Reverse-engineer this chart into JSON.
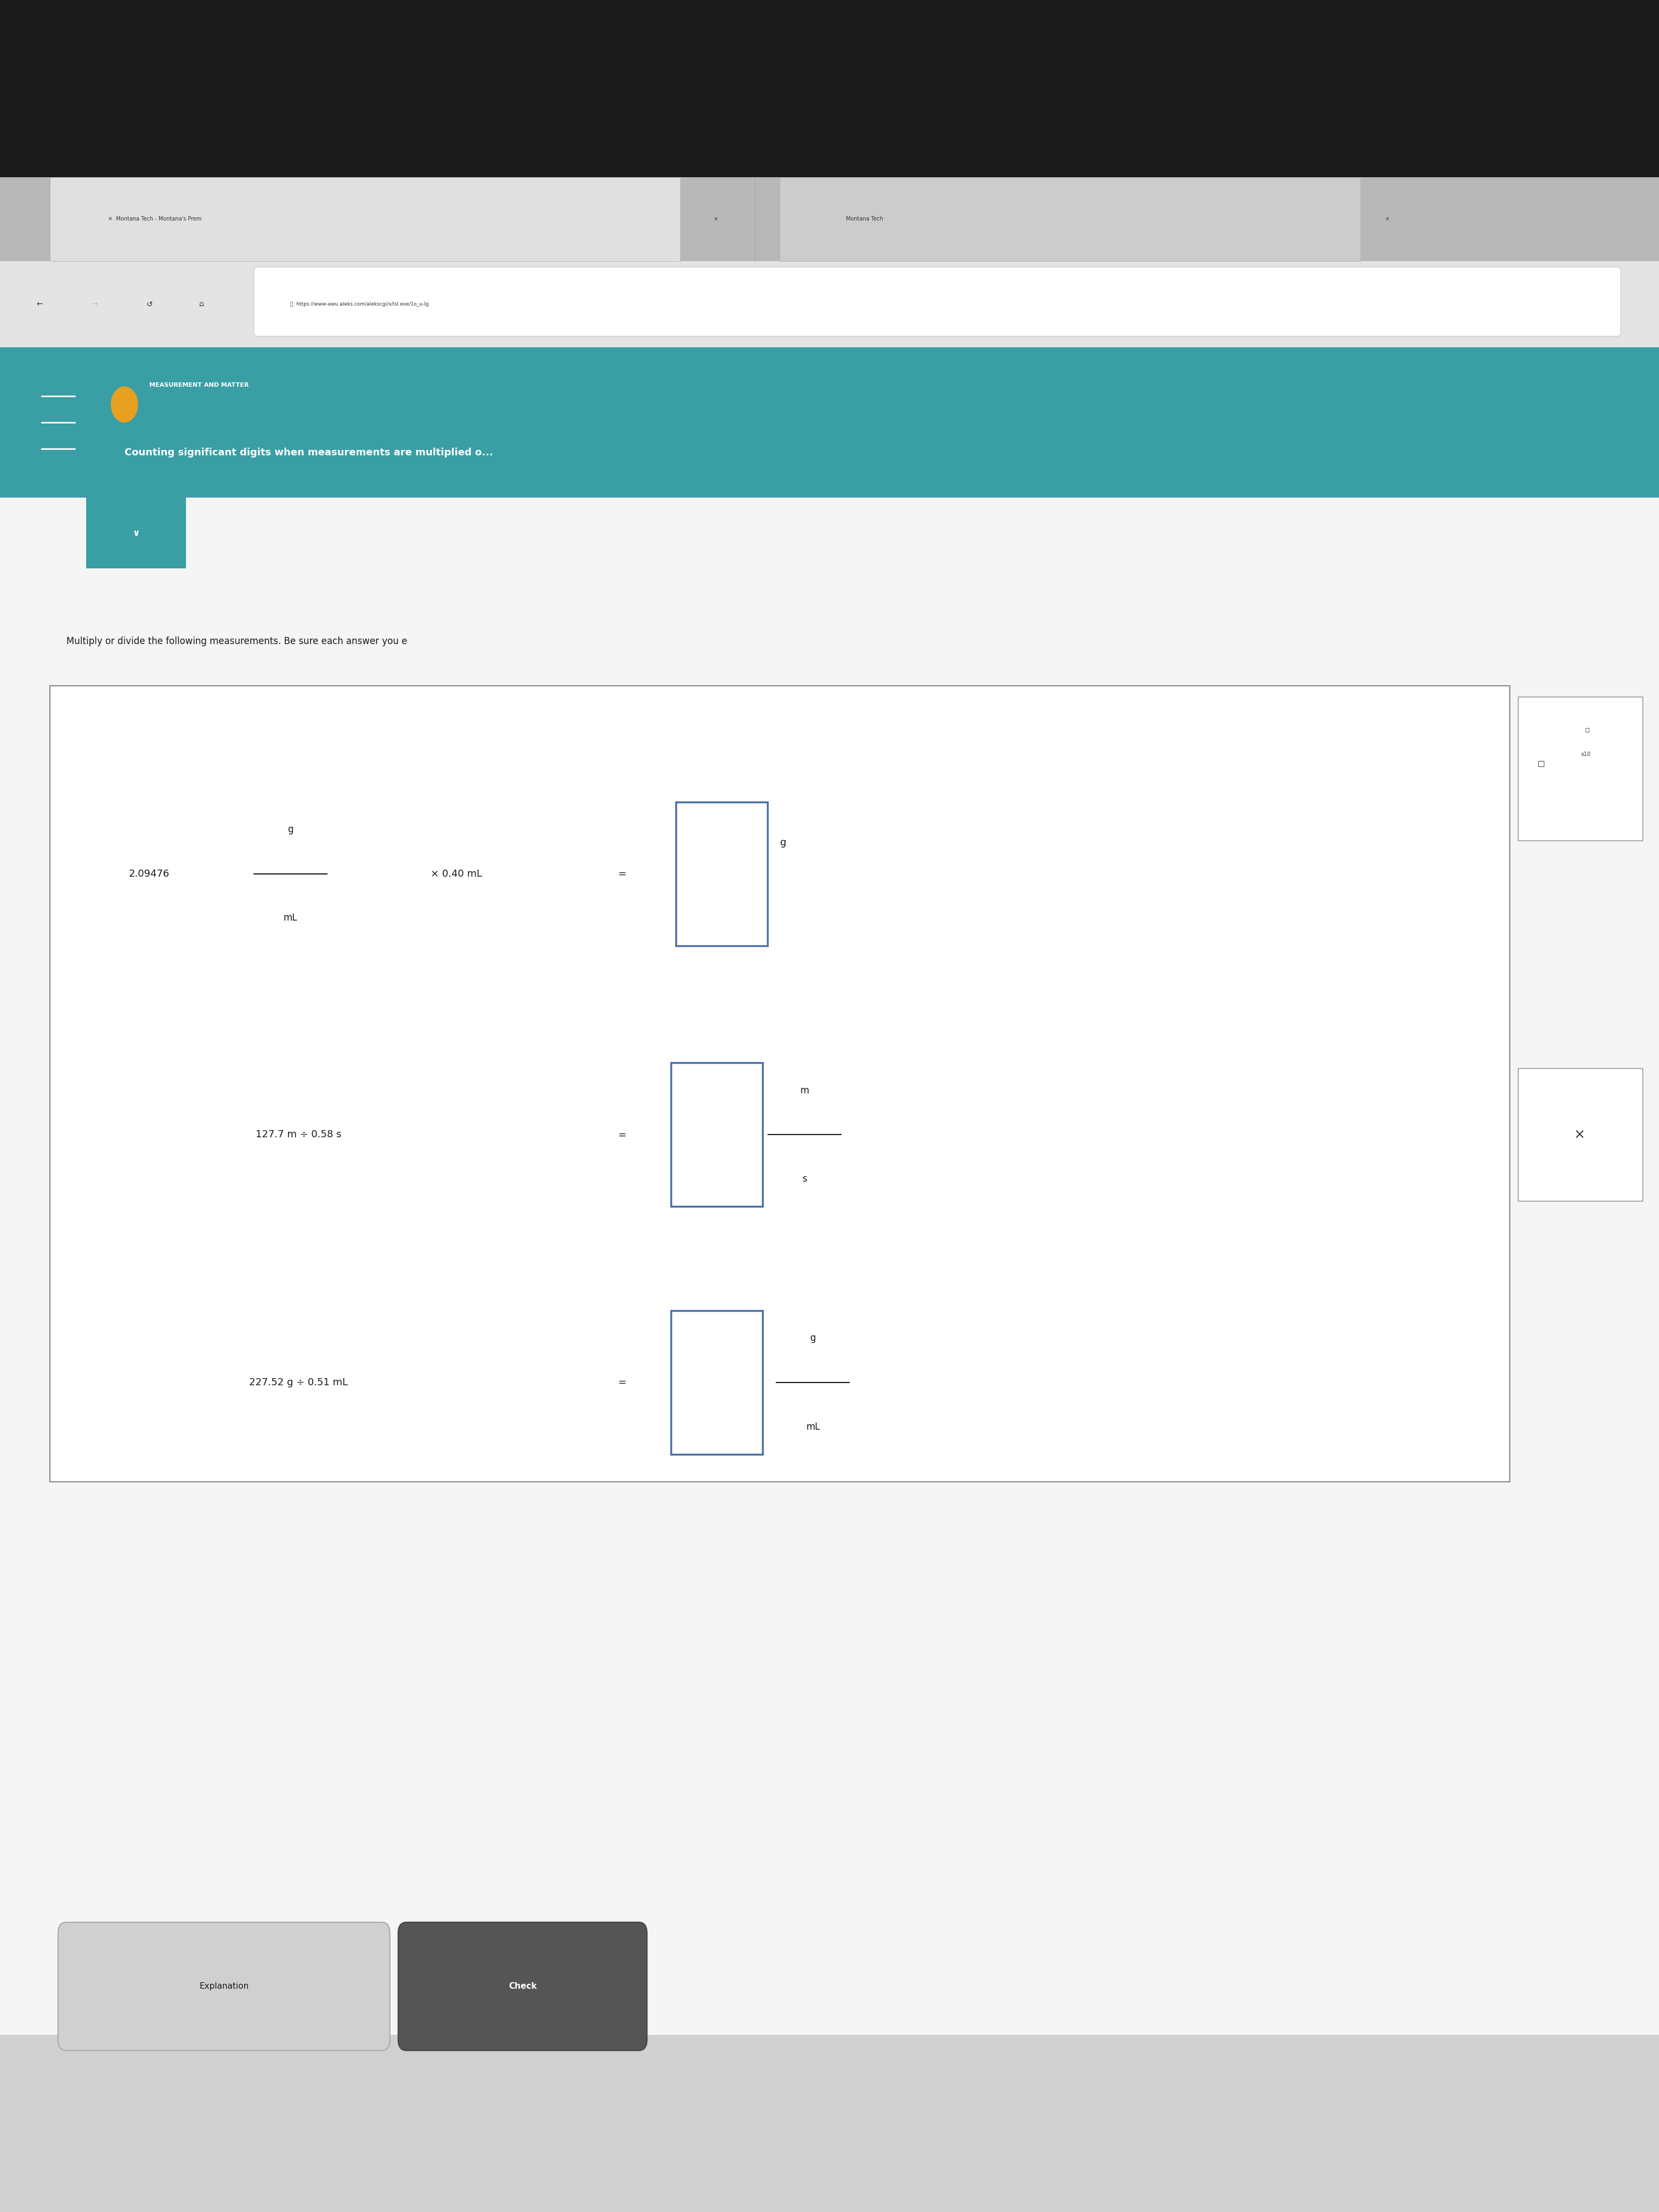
{
  "fig_width": 30.24,
  "fig_height": 40.32,
  "bg_color": "#d0d0d0",
  "teal_color": "#3a9ea5",
  "header_small": "MEASUREMENT AND MATTER",
  "header_large": "Counting significant digits when measurements are multiplied o...",
  "instruction": "Multiply or divide the following measurements. Be sure each answer you e",
  "url": "https://www-awu.aleks.com/alekscgi/x/lsl.exe/1o_u-lg",
  "input_border": "#4a6fa5",
  "button_explanation": "Explanation",
  "button_check": "Check",
  "white": "#ffffff",
  "black": "#1a1a1a",
  "dark_gray": "#333333",
  "light_gray": "#bbbbbb"
}
